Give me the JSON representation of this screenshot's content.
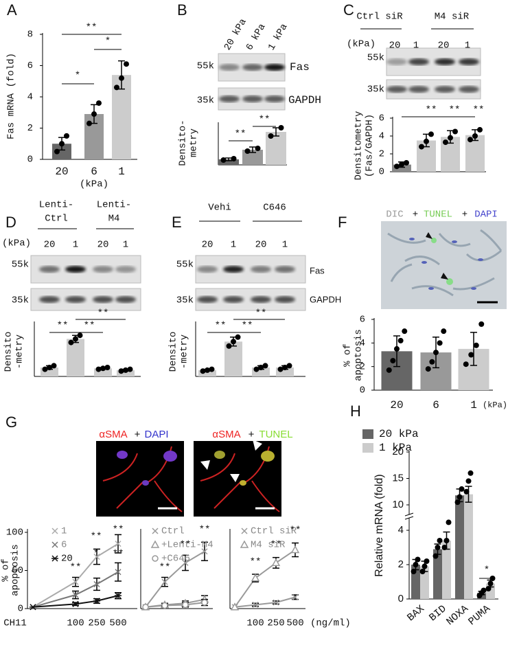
{
  "chart_data": [
    {
      "type": "bar",
      "categories": [
        "20",
        "6",
        "1"
      ],
      "values": [
        1.0,
        2.9,
        5.4
      ],
      "errors": [
        0.4,
        0.6,
        0.9
      ],
      "points": [
        [
          0.5,
          1.0,
          1.5
        ],
        [
          2.3,
          2.9,
          3.6
        ],
        [
          4.6,
          5.2,
          6.1
        ]
      ],
      "colors": [
        "#666666",
        "#999999",
        "#cccccc"
      ],
      "ylim": [
        0,
        8
      ],
      "yticks": [
        0,
        2,
        4,
        6,
        8
      ],
      "ylabel": [
        "Fas mRNA (fold)"
      ],
      "xlabel": "(kPa)",
      "annotations": [
        "*",
        "*",
        "**"
      ]
    },
    {
      "type": "bar",
      "values": [
        0.4,
        1.1,
        2.4
      ],
      "errors": [
        0.1,
        0.2,
        0.3
      ],
      "points": [
        [
          0.35,
          0.45
        ],
        [
          1.0,
          1.2
        ],
        [
          2.1,
          2.7
        ]
      ],
      "colors": [
        "#666666",
        "#999999",
        "#cccccc"
      ],
      "ylim": [
        0,
        3
      ],
      "ylabel": [
        "Densito-",
        "metry"
      ],
      "annotations": [
        "**",
        "**"
      ]
    },
    {
      "type": "bar",
      "values": [
        0.8,
        3.5,
        3.9,
        4.1
      ],
      "errors": [
        0.3,
        0.7,
        0.7,
        0.6
      ],
      "points": [
        [
          0.6,
          0.8,
          1.0
        ],
        [
          2.8,
          3.4,
          4.2
        ],
        [
          3.3,
          3.8,
          4.5
        ],
        [
          3.6,
          4.0,
          4.7
        ]
      ],
      "colors": [
        "#888888",
        "#cccccc",
        "#cccccc",
        "#cccccc"
      ],
      "ylim": [
        0,
        6
      ],
      "yticks": [
        0,
        2,
        4,
        6
      ],
      "ylabel": [
        "Densitometry",
        "(Fas/GAPDH)"
      ],
      "annotations": [
        "**",
        "**",
        "**"
      ]
    },
    {
      "type": "bar",
      "values": [
        1.0,
        4.2,
        0.9,
        0.7
      ],
      "errors": [
        0.2,
        0.4,
        0.1,
        0.1
      ],
      "points": [
        [
          0.8,
          1.0,
          1.2
        ],
        [
          3.8,
          4.2,
          4.6
        ],
        [
          0.8,
          0.9,
          1.0
        ],
        [
          0.6,
          0.7,
          0.8
        ]
      ],
      "colors": [
        "#cccccc",
        "#cccccc",
        "#cccccc",
        "#cccccc"
      ],
      "ylim": [
        0,
        6
      ],
      "ylabel": [
        "Densito",
        "-metry"
      ],
      "annotations": [
        "**",
        "**",
        "**"
      ]
    },
    {
      "type": "bar",
      "values": [
        0.7,
        3.9,
        1.0,
        1.0
      ],
      "errors": [
        0.1,
        0.5,
        0.2,
        0.2
      ],
      "points": [
        [
          0.6,
          0.7,
          0.8
        ],
        [
          3.4,
          3.9,
          4.4
        ],
        [
          0.8,
          1.0,
          1.2
        ],
        [
          0.8,
          1.0,
          1.2
        ]
      ],
      "colors": [
        "#cccccc",
        "#cccccc",
        "#cccccc",
        "#cccccc"
      ],
      "ylim": [
        0,
        6
      ],
      "ylabel": [
        "Densito",
        "-metry"
      ],
      "annotations": [
        "**",
        "**",
        "**"
      ]
    },
    {
      "type": "bar",
      "categories": [
        "20",
        "6",
        "1"
      ],
      "values": [
        3.3,
        3.2,
        3.5
      ],
      "errors": [
        1.3,
        1.3,
        1.4
      ],
      "points": [
        [
          1.7,
          2.5,
          3.5,
          4.2,
          5.0
        ],
        [
          1.8,
          2.4,
          3.2,
          4.0,
          5.0
        ],
        [
          2.2,
          3.0,
          3.8,
          5.6
        ]
      ],
      "colors": [
        "#666666",
        "#999999",
        "#cccccc"
      ],
      "ylim": [
        0,
        6
      ],
      "yticks": [
        0,
        2,
        4,
        6
      ],
      "ylabel": [
        "% of",
        "apoptosis"
      ],
      "xlabel": "(kPa)"
    },
    {
      "type": "line",
      "categories": [
        null,
        "100",
        "250",
        "500"
      ],
      "ylim": [
        0,
        100
      ],
      "yticks": [
        0,
        50,
        100
      ],
      "ylabel": [
        "% of",
        "apoptosis"
      ],
      "series": [
        {
          "name": "1",
          "color": "#aaaaaa",
          "marker": "x",
          "values": [
            2,
            35,
            68,
            85
          ],
          "errors": [
            0,
            6,
            10,
            12
          ]
        },
        {
          "name": "6",
          "color": "#777777",
          "marker": "x",
          "values": [
            2,
            18,
            32,
            48
          ],
          "errors": [
            0,
            5,
            8,
            12
          ]
        },
        {
          "name": "20",
          "color": "#111111",
          "marker": "asterisk",
          "values": [
            2,
            6,
            10,
            17
          ],
          "errors": [
            0,
            2,
            3,
            4
          ]
        }
      ],
      "annotations": [
        "**",
        "**",
        "**",
        "*",
        "**"
      ]
    },
    {
      "type": "line",
      "categories": [
        null,
        null,
        null,
        null
      ],
      "ylim": [
        0,
        100
      ],
      "series": [
        {
          "name": "Ctrl",
          "color": "#999999",
          "marker": "x",
          "values": [
            2,
            35,
            60,
            75
          ],
          "errors": [
            0,
            6,
            10,
            12
          ]
        },
        {
          "name": "+Lenti-M4",
          "color": "#999999",
          "marker": "triangle",
          "values": [
            2,
            5,
            7,
            12
          ],
          "errors": [
            0,
            2,
            3,
            5
          ]
        },
        {
          "name": "+C646",
          "color": "#999999",
          "marker": "circle",
          "values": [
            2,
            4,
            5,
            8
          ],
          "errors": [
            0,
            1,
            3,
            4
          ]
        }
      ],
      "annotations": [
        "**",
        "**",
        "**"
      ]
    },
    {
      "type": "line",
      "categories": [
        null,
        "100",
        "250",
        "500"
      ],
      "ylim": [
        0,
        100
      ],
      "series": [
        {
          "name": "Ctrl siR",
          "color": "#999999",
          "marker": "x",
          "values": [
            2,
            5,
            8,
            15
          ],
          "errors": [
            0,
            2,
            2,
            3
          ]
        },
        {
          "name": "M4 siR",
          "color": "#999999",
          "marker": "triangle",
          "values": [
            2,
            40,
            60,
            77
          ],
          "errors": [
            0,
            5,
            7,
            9
          ]
        }
      ],
      "annotations": [
        "**",
        "**",
        "**"
      ]
    },
    {
      "type": "grouped_bar",
      "categories": [
        "BAX",
        "BID",
        "NOXA",
        "PUMA"
      ],
      "ylim": [
        0,
        20
      ],
      "yticks": [
        0,
        2,
        4,
        10,
        15,
        20
      ],
      "ylabel": "Relative mRNA (fold)",
      "series": [
        {
          "name": "20 kPa",
          "color": "#666666",
          "values": [
            2.0,
            2.9,
            11.8,
            0.35
          ],
          "errors": [
            0.3,
            0.3,
            1.2,
            0.1
          ],
          "points": [
            [
              1.6,
              2.0,
              2.3
            ],
            [
              2.5,
              3.0,
              3.4
            ],
            [
              10.5,
              11.5,
              13.0
            ],
            [
              0.2,
              0.35,
              0.5
            ]
          ]
        },
        {
          "name": "1 kPa",
          "color": "#cccccc",
          "values": [
            1.9,
            3.4,
            12.0,
            0.9
          ],
          "errors": [
            0.3,
            0.5,
            1.5,
            0.2
          ],
          "points": [
            [
              1.6,
              1.9,
              2.2
            ],
            [
              3.0,
              3.4,
              4.8
            ],
            [
              12.5,
              14.5,
              16.0
            ],
            [
              0.6,
              0.9,
              1.2
            ]
          ]
        }
      ],
      "annotations": [
        "*"
      ]
    }
  ],
  "labels": {
    "letters": [
      "A",
      "B",
      "C",
      "D",
      "E",
      "F",
      "G",
      "H"
    ],
    "B": {
      "lanes": [
        "20 kPa",
        "6 kPa",
        "1 kPa"
      ],
      "markers": [
        "55k",
        "35k"
      ],
      "proteins": [
        "Fas",
        "GAPDH"
      ]
    },
    "C": {
      "groups": [
        "Ctrl siR",
        "M4 siR"
      ],
      "unit": "(kPa)",
      "lanes": [
        "20",
        "1",
        "20",
        "1"
      ],
      "markers": [
        "55k",
        "35k"
      ]
    },
    "D": {
      "groups": [
        [
          "Lenti-",
          "Ctrl"
        ],
        [
          "Lenti-",
          "M4"
        ]
      ],
      "unit": "(kPa)",
      "lanes": [
        "20",
        "1",
        "20",
        "1"
      ],
      "markers": [
        "55k",
        "35k"
      ]
    },
    "E": {
      "groups": [
        "Vehi",
        "C646"
      ],
      "lanes": [
        "20",
        "1",
        "20",
        "1"
      ],
      "markers": [
        "55k",
        "35k"
      ],
      "proteins": [
        "Fas",
        "GAPDH"
      ]
    },
    "F": {
      "caption": [
        "DIC",
        "+",
        "TUNEL",
        "+",
        "DAPI"
      ]
    },
    "G": {
      "captions": [
        [
          "αSMA",
          "+",
          "DAPI"
        ],
        [
          "αSMA",
          "+",
          "TUNEL"
        ]
      ],
      "x_label": "CH11",
      "x_unit": "(ng/ml)"
    }
  }
}
